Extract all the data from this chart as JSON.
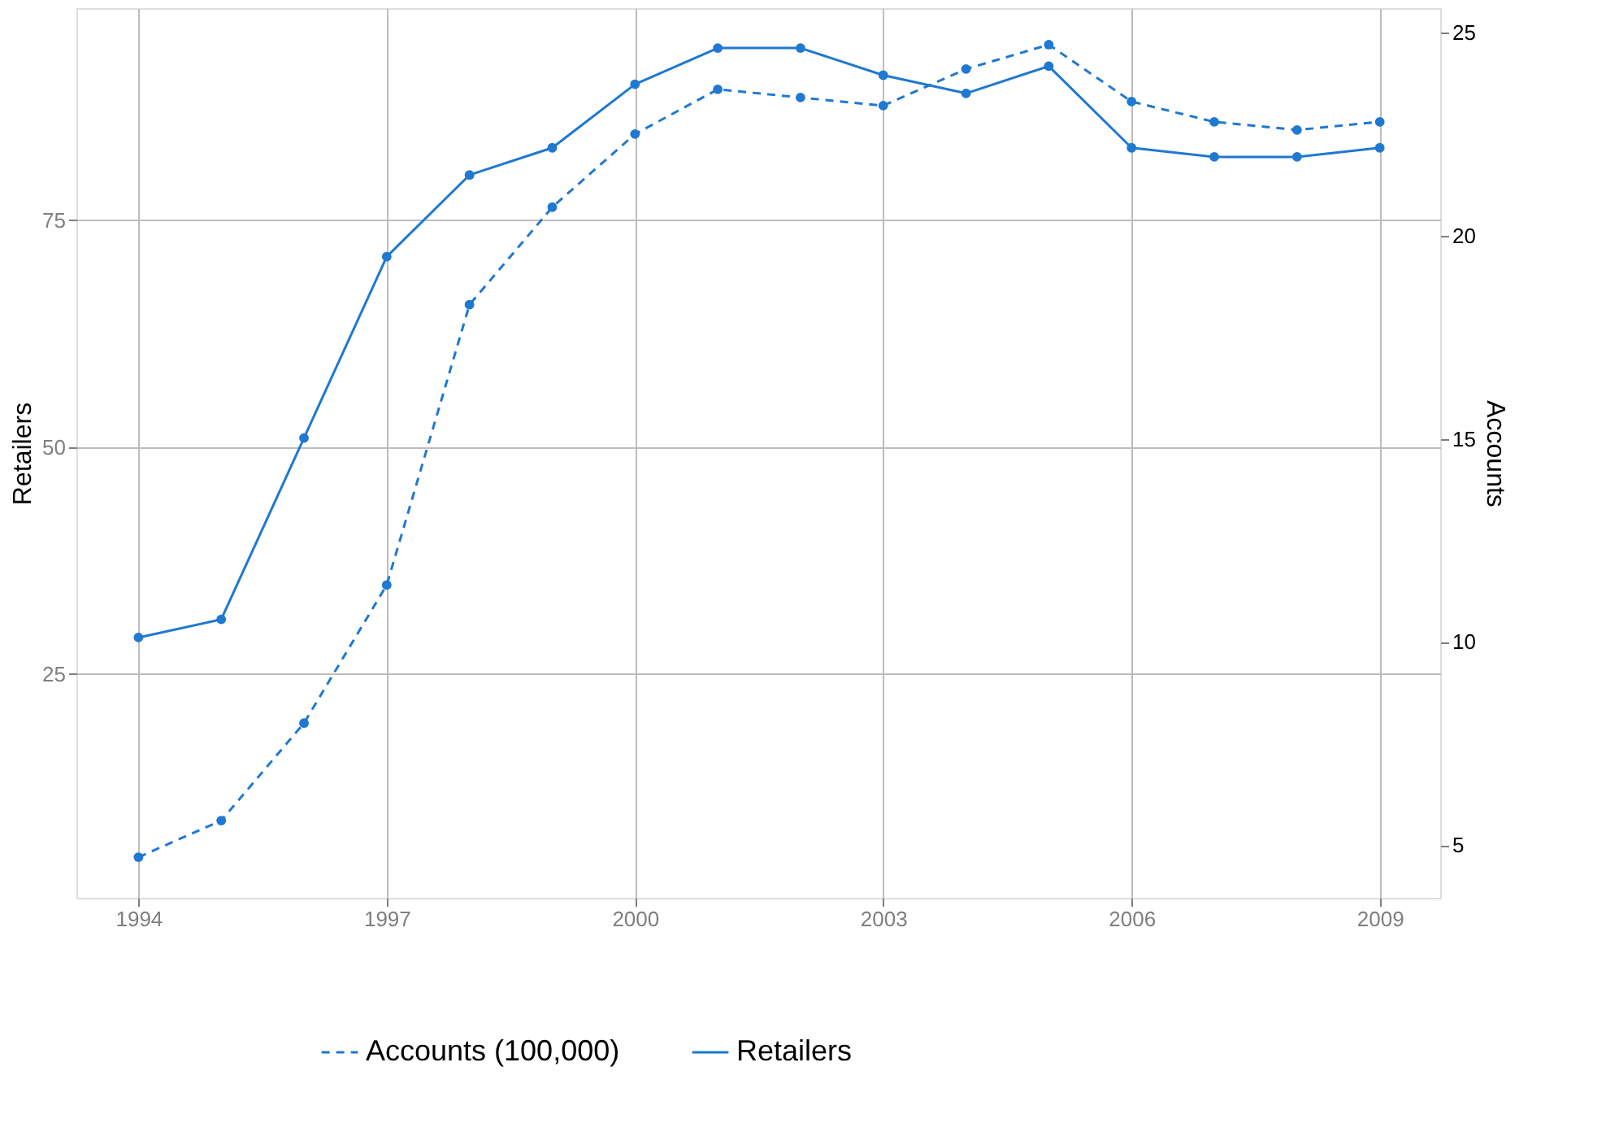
{
  "chart_data": {
    "type": "line",
    "ylabel": "Retailers",
    "y2label": "Accounts",
    "x": [
      1994,
      1995,
      1996,
      1997,
      1998,
      1999,
      2000,
      2001,
      2002,
      2003,
      2004,
      2005,
      2006,
      2007,
      2008,
      2009
    ],
    "series": [
      {
        "name": "Accounts (100,000)",
        "color": "#1f78d1",
        "axis": "y2",
        "line_style": "dashed",
        "values": [
          4.7,
          5.6,
          8.0,
          11.4,
          18.3,
          20.7,
          22.5,
          23.6,
          23.4,
          23.2,
          24.1,
          24.7,
          23.3,
          22.8,
          22.6,
          22.8
        ]
      },
      {
        "name": "Retailers",
        "color": "#1f78d1",
        "line_style": "solid",
        "values": [
          29,
          31,
          51,
          71,
          80,
          83,
          90,
          94,
          94,
          91,
          89,
          92,
          83,
          82,
          82,
          83
        ]
      }
    ],
    "xlim": [
      1993.25,
      2009.73
    ],
    "xticks": [
      1994,
      1997,
      2000,
      2003,
      2006,
      2009
    ],
    "ylim": [
      0.3,
      98.4
    ],
    "yticks": [
      25,
      50,
      75
    ],
    "y2lim": [
      3.7,
      25.6
    ],
    "y2ticks": [
      5,
      10,
      15,
      20,
      25
    ],
    "grid": true,
    "legend": "bottom",
    "marker": "circle"
  }
}
